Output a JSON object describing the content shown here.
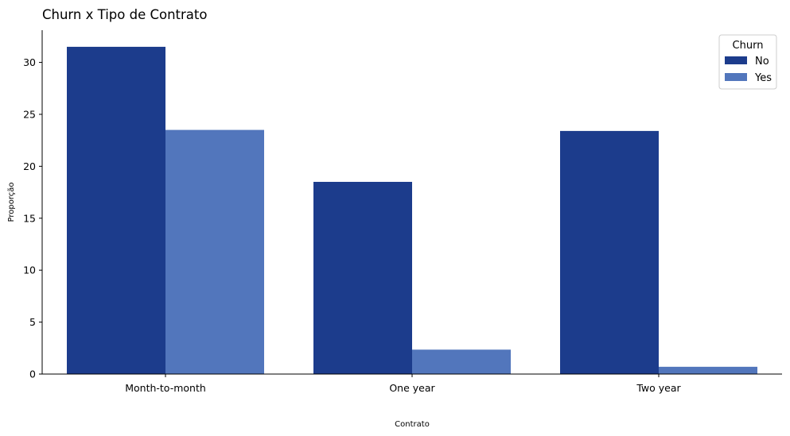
{
  "chart_data": {
    "type": "bar",
    "title": "Churn x Tipo de Contrato",
    "xlabel": "Contrato",
    "ylabel": "Proporção",
    "categories": [
      "Month-to-month",
      "One year",
      "Two year"
    ],
    "series": [
      {
        "name": "No",
        "values": [
          31.5,
          18.5,
          23.4
        ],
        "color": "#1c3c8c"
      },
      {
        "name": "Yes",
        "values": [
          23.5,
          2.35,
          0.7
        ],
        "color": "#5276bc"
      }
    ],
    "ylim": [
      0,
      33.1
    ],
    "yticks": [
      0,
      5,
      10,
      15,
      20,
      25,
      30
    ],
    "grid": false,
    "legend": {
      "title": "Churn",
      "placement": "top-right"
    }
  }
}
